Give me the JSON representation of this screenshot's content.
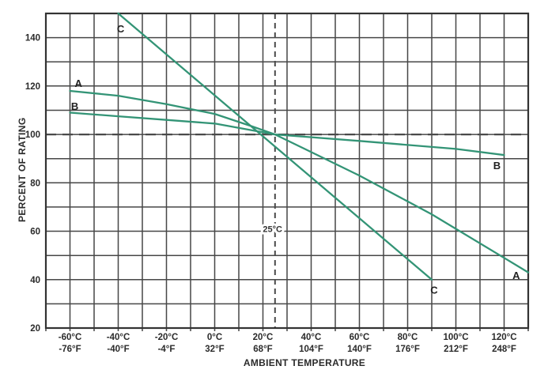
{
  "colors": {
    "curve": "#339476",
    "grid": "#474747",
    "border": "#333333",
    "dashed": "#4a4a4a",
    "text": "#2b2b2b",
    "background": "#ffffff"
  },
  "chart_data": {
    "type": "line",
    "title": "",
    "xlabel": "AMBIENT TEMPERATURE",
    "ylabel": "PERCENT OF RATING",
    "xlim": [
      -70,
      130
    ],
    "ylim": [
      20,
      150
    ],
    "grid_step_x": 10,
    "grid_step_y": 10,
    "grid": true,
    "legend_position": "inline-labels",
    "x_ticks": [
      {
        "value": -60,
        "c": "-60°C",
        "f": "-76°F"
      },
      {
        "value": -40,
        "c": "-40°C",
        "f": "-40°F"
      },
      {
        "value": -20,
        "c": "-20°C",
        "f": "-4°F"
      },
      {
        "value": 0,
        "c": "0°C",
        "f": "32°F"
      },
      {
        "value": 20,
        "c": "20°C",
        "f": "68°F"
      },
      {
        "value": 40,
        "c": "40°C",
        "f": "104°F"
      },
      {
        "value": 60,
        "c": "60°C",
        "f": "140°F"
      },
      {
        "value": 80,
        "c": "80°C",
        "f": "176°F"
      },
      {
        "value": 100,
        "c": "100°C",
        "f": "212°F"
      },
      {
        "value": 120,
        "c": "120°C",
        "f": "248°F"
      }
    ],
    "y_ticks": [
      20,
      40,
      60,
      80,
      100,
      120,
      140
    ],
    "series": [
      {
        "name": "A",
        "points": [
          [
            -60,
            118
          ],
          [
            -40,
            116
          ],
          [
            -20,
            112.5
          ],
          [
            0,
            108.5
          ],
          [
            15,
            103.5
          ],
          [
            25,
            100
          ],
          [
            60,
            83
          ],
          [
            90,
            67
          ],
          [
            130,
            43
          ]
        ]
      },
      {
        "name": "B",
        "points": [
          [
            -60,
            109
          ],
          [
            -40,
            107.5
          ],
          [
            -20,
            106
          ],
          [
            0,
            104.5
          ],
          [
            25,
            100
          ],
          [
            60,
            97.3
          ],
          [
            100,
            94
          ],
          [
            120,
            91.5
          ]
        ]
      },
      {
        "name": "C",
        "points": [
          [
            -40,
            150
          ],
          [
            90,
            40
          ]
        ]
      }
    ],
    "series_labels": [
      {
        "text": "A",
        "x": -56.5,
        "y": 121
      },
      {
        "text": "B",
        "x": -58,
        "y": 111.5
      },
      {
        "text": "C",
        "x": -39,
        "y": 143.5
      },
      {
        "text": "C",
        "x": 91,
        "y": 35.5
      },
      {
        "text": "A",
        "x": 125,
        "y": 41.5
      },
      {
        "text": "B",
        "x": 117,
        "y": 87
      }
    ],
    "reference_lines": {
      "horizontal": {
        "value": 100,
        "style": "dashed"
      },
      "vertical": {
        "value": 25,
        "style": "dashed",
        "label": {
          "text": "25°C",
          "x": 24,
          "y": 61
        }
      }
    }
  }
}
